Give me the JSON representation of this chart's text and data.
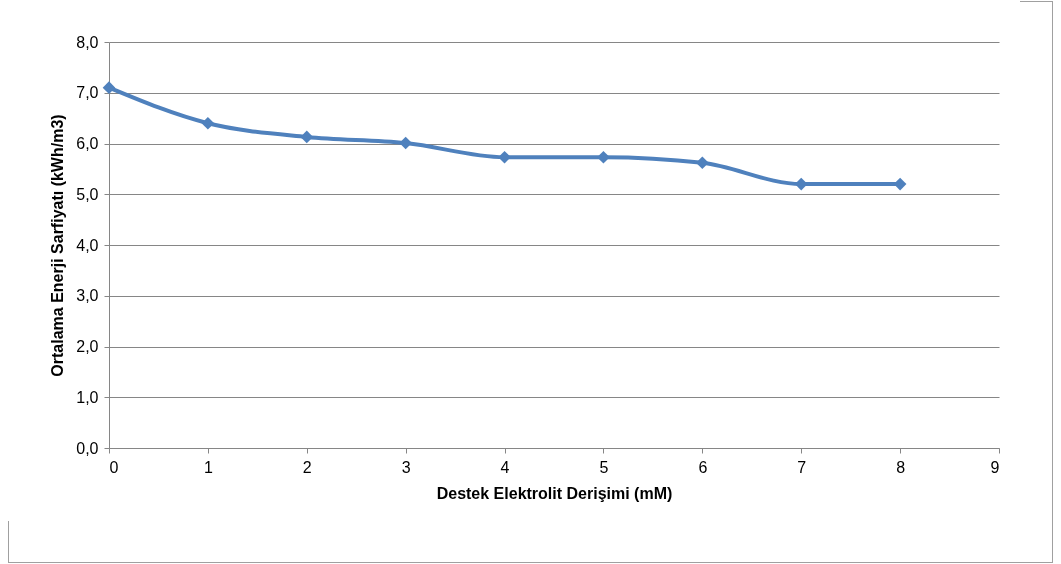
{
  "chart_data": {
    "type": "line",
    "xlabel": "Destek Elektrolit Derişimi (mM)",
    "ylabel": "Ortalama Enerji Sarfiyatı (kWh/m3)",
    "x": [
      0,
      1,
      2,
      3,
      4,
      5,
      6,
      7,
      8
    ],
    "series": [
      {
        "color": "#4f81bd",
        "values": [
          7.1,
          6.4,
          6.13,
          6.01,
          5.73,
          5.73,
          5.62,
          5.2,
          5.2
        ]
      }
    ],
    "xlim": [
      0,
      9
    ],
    "xticks": [
      0,
      1,
      2,
      3,
      4,
      5,
      6,
      7,
      8,
      9
    ],
    "ylim": [
      0,
      8
    ],
    "yticks": [
      {
        "value": 0,
        "label": "0,0"
      },
      {
        "value": 1,
        "label": "1,0"
      },
      {
        "value": 2,
        "label": "2,0"
      },
      {
        "value": 3,
        "label": "3,0"
      },
      {
        "value": 4,
        "label": "4,0"
      },
      {
        "value": 5,
        "label": "5,0"
      },
      {
        "value": 6,
        "label": "6,0"
      },
      {
        "value": 7,
        "label": "7,0"
      },
      {
        "value": 8,
        "label": "8,0"
      }
    ],
    "grid": "y",
    "marker": "diamond",
    "line_style": "solid"
  }
}
